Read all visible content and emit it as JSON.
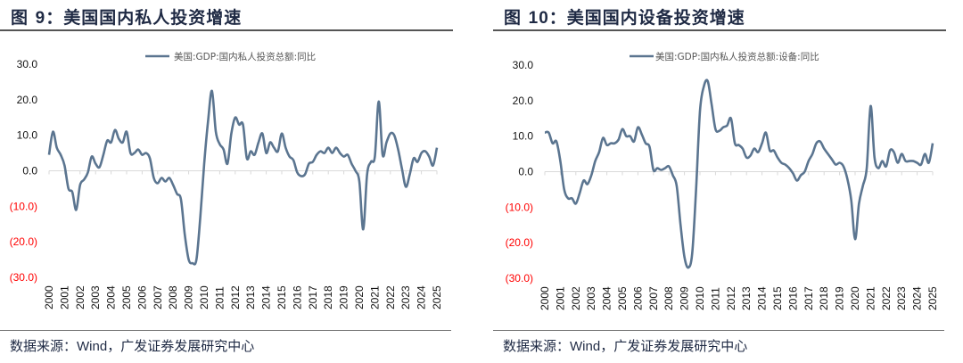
{
  "panels": [
    {
      "title_prefix": "图",
      "title_num": "9：",
      "title_text": "美国国内私人投资增速",
      "source_prefix": "数据来源：",
      "source_wind": "Wind",
      "source_rest": "，广发证券发展研究中心"
    },
    {
      "title_prefix": "图",
      "title_num": "10：",
      "title_text": "美国国内设备投资增速",
      "source_prefix": "数据来源：",
      "source_wind": "Wind",
      "source_rest": "，广发证券发展研究中心"
    }
  ],
  "chart_data": [
    {
      "type": "line",
      "x_start": "2000Q1",
      "x_frequency": "quarterly",
      "x_ticks": [
        "2000",
        "2001",
        "2002",
        "2003",
        "2004",
        "2005",
        "2006",
        "2007",
        "2008",
        "2009",
        "2010",
        "2011",
        "2012",
        "2013",
        "2014",
        "2015",
        "2016",
        "2017",
        "2018",
        "2019",
        "2020",
        "2021",
        "2022",
        "2023",
        "2024",
        "2025"
      ],
      "y_ticks": [
        "30.0",
        "20.0",
        "10.0",
        "0.0",
        "(10.0)",
        "(20.0)",
        "(30.0)"
      ],
      "ylim": [
        -30,
        30
      ],
      "negative_tick_color": "#ff0000",
      "line_color": "#5b7590",
      "legend_position": "top",
      "series": [
        {
          "name": "美国:GDP:国内私人投资总额:同比",
          "values": [
            4.5,
            11,
            6.5,
            4.5,
            1.5,
            -5,
            -6,
            -11,
            -4,
            -2.5,
            -0.5,
            4,
            2,
            1,
            4.5,
            8.5,
            8,
            11.5,
            9,
            8,
            11,
            5,
            5,
            6,
            4.5,
            5,
            3.5,
            -2,
            -3.5,
            -2,
            -3,
            -2,
            -4,
            -6.5,
            -8,
            -18,
            -25,
            -26,
            -25,
            -13,
            2,
            14,
            22.5,
            11,
            7.5,
            6,
            2,
            10.5,
            15,
            13,
            13,
            3.5,
            5.5,
            4.5,
            8,
            10.5,
            5,
            8,
            6.5,
            5.5,
            10.5,
            6.5,
            4,
            3,
            -0.5,
            -1.5,
            -1,
            2,
            2.5,
            4.5,
            5.5,
            5,
            6.5,
            5,
            6.5,
            5,
            4,
            4.5,
            2,
            0,
            -3,
            -16.5,
            -1,
            2.5,
            4,
            19.5,
            4.5,
            8,
            10.5,
            10,
            6,
            0.5,
            -4.5,
            -1,
            3.5,
            2.5,
            5,
            5.5,
            4,
            1.5,
            6.5
          ]
        }
      ]
    },
    {
      "type": "line",
      "x_start": "2000Q1",
      "x_frequency": "quarterly",
      "x_ticks": [
        "2000",
        "2001",
        "2002",
        "2003",
        "2004",
        "2005",
        "2006",
        "2007",
        "2008",
        "2009",
        "2010",
        "2011",
        "2012",
        "2013",
        "2014",
        "2015",
        "2016",
        "2017",
        "2018",
        "2019",
        "2020",
        "2021",
        "2022",
        "2023",
        "2024",
        "2025"
      ],
      "y_ticks": [
        "30.0",
        "20.0",
        "10.0",
        "0.0",
        "(10.0)",
        "(20.0)",
        "(30.0)"
      ],
      "ylim": [
        -30,
        30
      ],
      "negative_tick_color": "#ff0000",
      "line_color": "#5b7590",
      "legend_position": "top",
      "series": [
        {
          "name": "美国:GDP:国内私人投资总额:设备:同比",
          "values": [
            11,
            11,
            8,
            8.5,
            3,
            -5,
            -7.5,
            -7.5,
            -9,
            -6,
            -2.5,
            -3.5,
            -1,
            3,
            5.5,
            9.5,
            7.5,
            8,
            8,
            9,
            12,
            10,
            10,
            8.5,
            12.5,
            10.5,
            8,
            7,
            0.5,
            1,
            0.5,
            1,
            1.5,
            -1,
            -4,
            -15,
            -24,
            -27,
            -23,
            -5,
            17,
            24,
            25.5,
            19,
            12,
            11.5,
            12.5,
            13,
            15,
            8,
            7.5,
            6.5,
            4,
            4.5,
            6.5,
            5.5,
            8,
            11,
            6,
            6,
            4,
            2.5,
            2,
            1,
            -0.5,
            -2.5,
            -1,
            0,
            3,
            5,
            8,
            8.5,
            6.5,
            5,
            3.5,
            2,
            2.5,
            1.5,
            -2,
            -8,
            -19,
            -9,
            -4,
            1,
            18.5,
            4,
            1,
            3,
            1.5,
            6,
            5.5,
            2.5,
            5,
            3,
            3,
            3,
            2.5,
            2,
            5,
            2.5,
            8
          ]
        }
      ]
    }
  ]
}
